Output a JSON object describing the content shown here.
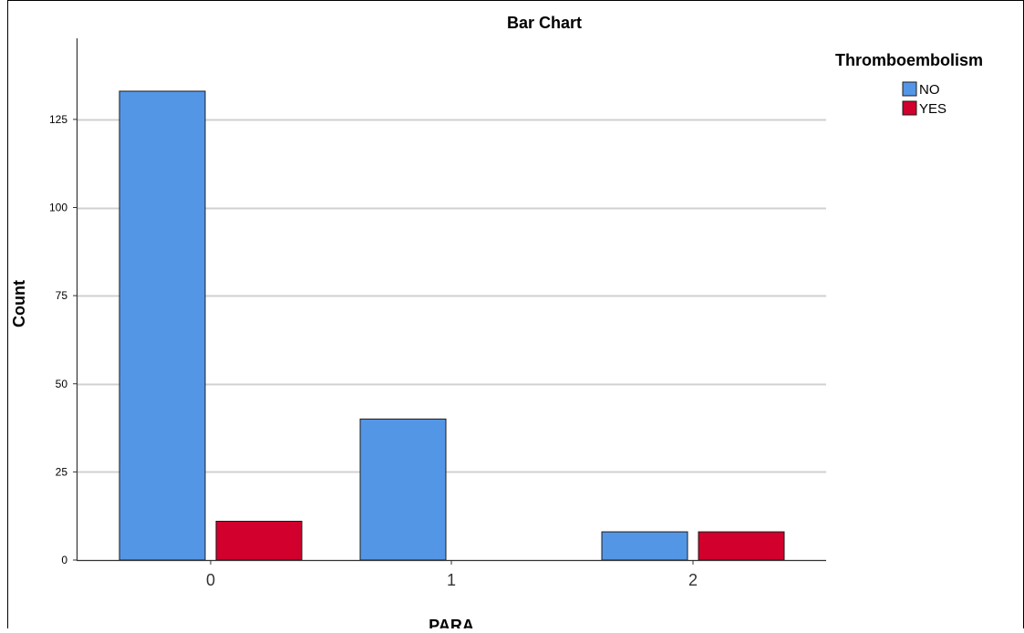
{
  "chart_data": {
    "type": "bar",
    "title": "Bar Chart",
    "xlabel": "PARA",
    "ylabel": "Count",
    "categories": [
      "0",
      "1",
      "2"
    ],
    "series": [
      {
        "name": "NO",
        "values": [
          133,
          40,
          8
        ]
      },
      {
        "name": "YES",
        "values": [
          11,
          0,
          8
        ]
      }
    ],
    "ylim": [
      0,
      148
    ],
    "yticks": [
      0,
      25,
      50,
      75,
      100,
      125
    ],
    "grid": true,
    "legend": {
      "title": "Thromboembolism",
      "position": "top-right"
    },
    "colors": {
      "series": [
        "#5496e6",
        "#d1002c"
      ],
      "bar_edge": "#1c1c1c",
      "gridline": "#d0d0d0",
      "axis": "#333333",
      "border": "#000000"
    }
  }
}
